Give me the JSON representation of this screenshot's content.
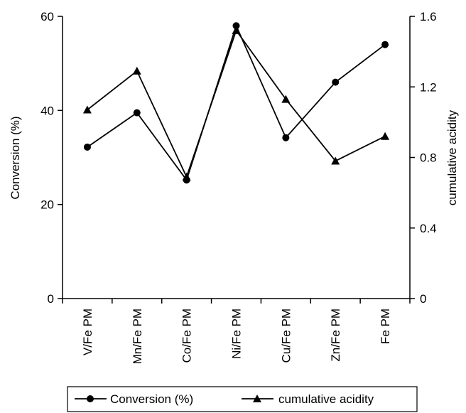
{
  "chart_data": {
    "type": "line",
    "categories": [
      "V/Fe PM",
      "Mn/Fe PM",
      "Co/Fe PM",
      "Ni/Fe PM",
      "Cu/Fe PM",
      "Zn/Fe PM",
      "Fe PM"
    ],
    "series": [
      {
        "name": "Conversion (%)",
        "axis": "left",
        "marker": "circle",
        "values": [
          32.2,
          39.5,
          25.2,
          58.0,
          34.2,
          46.0,
          54.0
        ]
      },
      {
        "name": "cumulative acidity",
        "axis": "right",
        "marker": "triangle",
        "values": [
          1.07,
          1.29,
          0.69,
          1.52,
          1.13,
          0.78,
          0.92
        ]
      }
    ],
    "ylabel": "Conversion (%)",
    "y2label": "cumulative acidity",
    "ylim": [
      0,
      60
    ],
    "y2lim": [
      0,
      1.6
    ],
    "yticks": [
      "0",
      "20",
      "40",
      "60"
    ],
    "y2ticks": [
      "0",
      "0.4",
      "0.8",
      "1.2",
      "1.6"
    ],
    "grid": false,
    "legend_position": "bottom"
  }
}
